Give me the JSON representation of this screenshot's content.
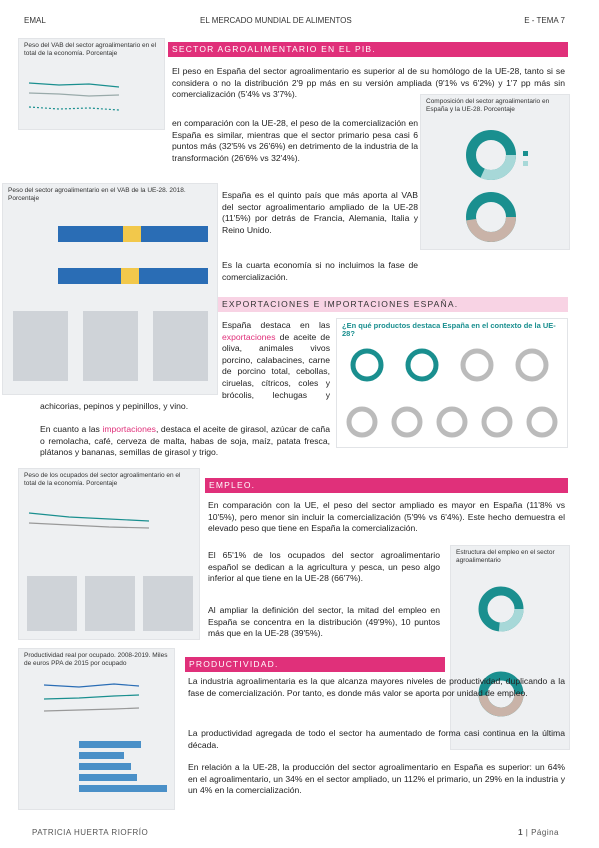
{
  "header": {
    "left": "EMAL",
    "center": "EL MERCADO MUNDIAL DE ALIMENTOS",
    "right": "E - TEMA 7"
  },
  "sections": [
    {
      "heading": "SECTOR AGROALIMENTARIO EN EL PIB.",
      "paragraphs": [
        "El peso en España del sector agroalimentario es superior al de su homólogo de la UE-28, tanto si se considera o no la distribución 2'9 pp más en su versión ampliada (9'1% vs 6'2%) y 1'7 pp más sin comercialización (5'4% vs 3'7%).",
        "en comparación con la UE-28, el peso de la comercialización en España es similar, mientras que el sector primario pesa casi 6 puntos más (32'5% vs 26'6%) en detrimento de la industria de la transformación (26'6% vs 32'4%).",
        "España es el quinto país que más aporta al VAB del sector agroalimentario ampliado de la UE-28 (11'5%) por detrás de Francia, Alemania, Italia y Reino Unido.",
        "Es la cuarta economía si no incluimos la fase de comercialización."
      ]
    },
    {
      "heading": "EXPORTACIONES E IMPORTACIONES ESPAÑA.",
      "paragraphs": [
        [
          "España destaca en las ",
          "exportaciones",
          " de aceite de oliva, animales vivos porcino, calabacines, carne de porcino total, cebollas, ciruelas, cítricos, coles y brócolis, lechugas y achicorias, pepinos y pepinillos, y vino."
        ],
        [
          "En cuanto a las ",
          "importaciones",
          ", destaca el aceite de girasol, azúcar de caña o remolacha, café, cerveza de malta, habas de soja, maíz, patata fresca, plátanos y bananas, semillas de girasol y trigo."
        ]
      ]
    },
    {
      "heading": "EMPLEO.",
      "paragraphs": [
        "En comparación con la UE, el peso del sector ampliado es mayor en España (11'8% vs 10'5%), pero menor sin incluir la comercialización (5'9% vs 6'4%). Este hecho demuestra el elevado peso que tiene en España la comercialización.",
        "El 65'1% de los ocupados del sector agroalimentario español se dedican a la agricultura y pesca, un peso algo inferior al que tiene en la UE-28 (66'7%).",
        "Al ampliar la definición del sector, la mitad del empleo en España se concentra en la distribución (49'9%), 10 puntos más que en la UE-28 (39'5%)."
      ]
    },
    {
      "heading": "PRODUCTIVIDAD.",
      "paragraphs": [
        "La industria agroalimentaria es la que alcanza mayores niveles de productividad, duplicando a la fase de comercialización. Por tanto, es donde más valor se aporta por unidad de empleo.",
        "La productividad agregada de todo el sector ha aumentado de forma casi continua en la última década.",
        "En relación a la UE-28, la producción del sector agroalimentario en España es superior: un 64% en el agroalimentario, un 34% en el sector ampliado, un 112% el primario, un 29% en la industria y un 4% en la comercialización."
      ]
    }
  ],
  "figures": [
    {
      "title": "Peso del VAB del sector agroalimentario en el total de la economía. Porcentaje"
    },
    {
      "title": "Composición del sector agroalimentario en España y la UE-28. Porcentaje"
    },
    {
      "title": "Peso del sector agroalimentario en el VAB de la UE-28. 2018. Porcentaje"
    },
    {
      "title": "¿En qué productos destaca España en el contexto de la UE-28?"
    },
    {
      "title": "Peso de los ocupados del sector agroalimentario en el total de la economía. Porcentaje"
    },
    {
      "title": "Estructura del empleo en el sector agroalimentario"
    },
    {
      "title": "Productividad real por ocupado. 2008-2019. Miles de euros PPA de 2015 por ocupado"
    }
  ],
  "footer": {
    "author": "PATRICIA HUERTA RIOFRÍO",
    "page": "1",
    "page_word": "Página"
  }
}
